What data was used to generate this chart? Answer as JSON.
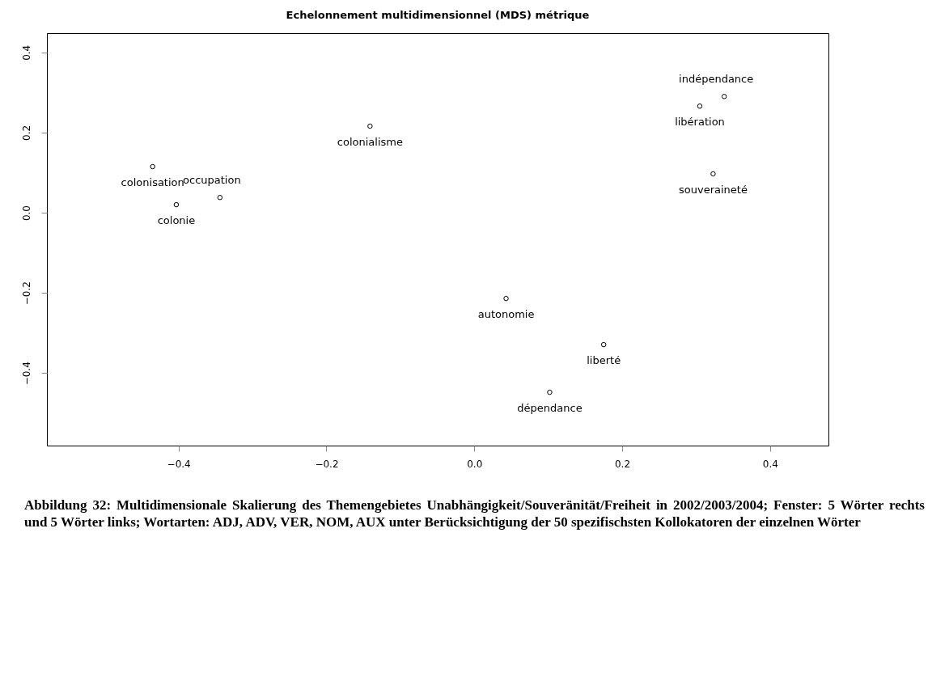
{
  "chart_data": {
    "type": "scatter",
    "title": "Echelonnement multidimensionnel (MDS) métrique",
    "series": [
      {
        "name": "indépendance",
        "color": "#000000",
        "x": [
          0.338
        ],
        "values": [
          0.29
        ]
      },
      {
        "name": "libération",
        "color": "#000000",
        "x": [
          0.305
        ],
        "values": [
          0.266
        ]
      },
      {
        "name": "souveraineté",
        "color": "#000000",
        "x": [
          0.323
        ],
        "values": [
          0.097
        ]
      },
      {
        "name": "colonialisme",
        "color": "#000000",
        "x": [
          -0.141
        ],
        "values": [
          0.216
        ]
      },
      {
        "name": "colonisation",
        "color": "#000000",
        "x": [
          -0.435
        ],
        "values": [
          0.115
        ]
      },
      {
        "name": "colonie",
        "color": "#000000",
        "x": [
          -0.403
        ],
        "values": [
          0.02
        ]
      },
      {
        "name": "occupation",
        "color": "#000000",
        "x": [
          -0.344
        ],
        "values": [
          0.038
        ]
      },
      {
        "name": "autonomie",
        "color": "#000000",
        "x": [
          0.043
        ],
        "values": [
          -0.214
        ]
      },
      {
        "name": "liberté",
        "color": "#000000",
        "x": [
          0.175
        ],
        "values": [
          -0.329
        ]
      },
      {
        "name": "dépendance",
        "color": "#000000",
        "x": [
          0.102
        ],
        "values": [
          -0.448
        ]
      }
    ],
    "marker": "circle",
    "grid": false,
    "xlim": [
      -0.578,
      0.479
    ],
    "ylim": [
      -0.581,
      0.448
    ],
    "xticks": [
      {
        "value": -0.4,
        "label": "−0.4"
      },
      {
        "value": -0.2,
        "label": "−0.2"
      },
      {
        "value": 0,
        "label": "0.0"
      },
      {
        "value": 0.2,
        "label": "0.2"
      },
      {
        "value": 0.4,
        "label": "0.4"
      }
    ],
    "yticks": [
      {
        "value": -0.4,
        "label": "−0.4"
      },
      {
        "value": -0.2,
        "label": "−0.2"
      },
      {
        "value": 0,
        "label": "0.0"
      },
      {
        "value": 0.2,
        "label": "0.2"
      },
      {
        "value": 0.4,
        "label": "0.4"
      }
    ],
    "annotations": [
      "Abbildung 32: Multidimensionale Skalierung des Themengebietes Unabhängigkeit/Souveränität/Freiheit in 2002/2003/2004; Fenster: 5 Wörter rechts und 5 Wörter links; Wortarten: ADJ, ADV, VER, NOM, AUX unter Berücksichtigung der 50 spezifischsten Kollokatoren der einzelnen Wörter"
    ]
  }
}
